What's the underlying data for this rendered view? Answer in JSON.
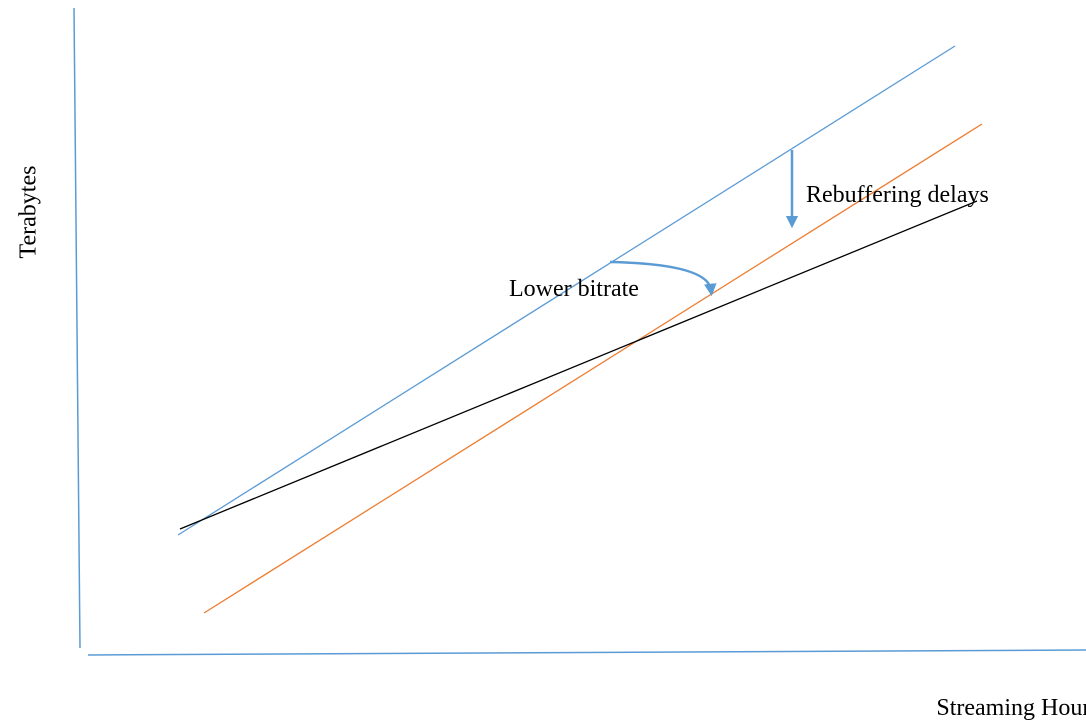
{
  "axes": {
    "y_label": "Terabytes",
    "x_label": "Streaming Hours",
    "color": "#5b9bd5"
  },
  "lines": [
    {
      "name": "upper-line",
      "color": "#5b9bd5"
    },
    {
      "name": "middle-line",
      "color": "#ed7d31"
    },
    {
      "name": "lower-line",
      "color": "#000000"
    }
  ],
  "annotations": {
    "rebuffering": "Rebuffering delays",
    "lower_bitrate": "Lower bitrate",
    "arrow_color": "#5b9bd5"
  }
}
